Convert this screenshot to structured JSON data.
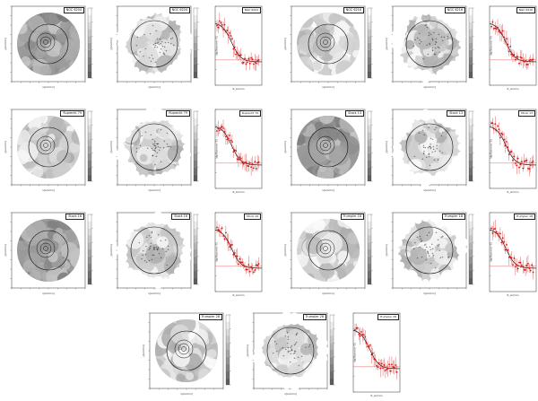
{
  "figure": {
    "rows": [
      {
        "clusters": [
          {
            "name": "NGC 6204"
          },
          {
            "name": "NGC 6216"
          }
        ]
      },
      {
        "clusters": [
          {
            "name": "Ruprecht 79"
          },
          {
            "name": "Stock 13"
          }
        ]
      },
      {
        "clusters": [
          {
            "name": "Stock 16"
          },
          {
            "name": "Trumpler 18"
          }
        ]
      },
      {
        "clusters": [
          {
            "name": "Trumpler 28"
          }
        ]
      }
    ]
  },
  "axis_text": {
    "density_x": "x[arcmin]",
    "density_y": "y[arcmin]",
    "profile_x": "R_arcmin",
    "profile_y": "log(N/arcmin^2)"
  }
}
